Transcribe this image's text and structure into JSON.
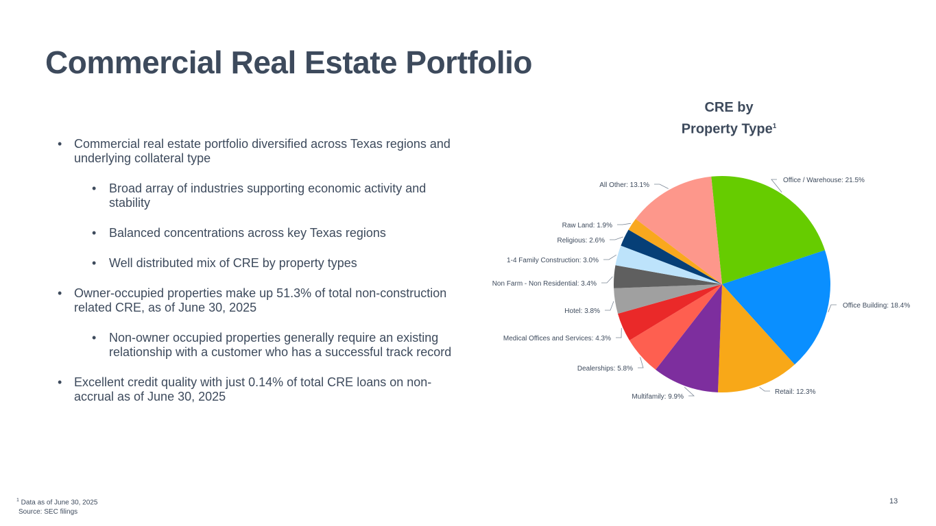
{
  "title": "Commercial Real Estate Portfolio",
  "bullets": {
    "b1": "Commercial real estate portfolio diversified across Texas regions and underlying collateral type",
    "b1a": "Broad array of industries supporting economic activity and stability",
    "b1b": "Balanced concentrations across key Texas regions",
    "b1c": "Well distributed mix of CRE by property types",
    "b2": "Owner-occupied properties make up 51.3% of total non-construction related CRE, as of June 30, 2025",
    "b2a": "Non-owner occupied properties generally require an existing relationship with a customer who has a successful track record",
    "b3": "Excellent credit quality with just  0.14% of total CRE loans on non-accrual as of June 30, 2025"
  },
  "bullet_glyph": "•",
  "chart_title": {
    "line1": "CRE by",
    "line2": "Property Type",
    "footnote_mark": "1"
  },
  "chart_data": {
    "type": "pie",
    "title": "CRE by Property Type",
    "slices": [
      {
        "label": "Office / Warehouse: 21.5%",
        "value": 21.5,
        "color": "#66cc00"
      },
      {
        "label": "Office Building: 18.4%",
        "value": 18.4,
        "color": "#0a8fff"
      },
      {
        "label": "Retail: 12.3%",
        "value": 12.3,
        "color": "#f8a818"
      },
      {
        "label": "Multifamily: 9.9%",
        "value": 9.9,
        "color": "#7d2e9e"
      },
      {
        "label": "Dealerships: 5.8%",
        "value": 5.8,
        "color": "#fe5f50"
      },
      {
        "label": "Medical Offices and Services: 4.3%",
        "value": 4.3,
        "color": "#ea2929"
      },
      {
        "label": "Hotel: 3.8%",
        "value": 3.8,
        "color": "#a0a0a0"
      },
      {
        "label": "Non Farm - Non Residential: 3.4%",
        "value": 3.4,
        "color": "#5f5f5f"
      },
      {
        "label": "1-4 Family Construction: 3.0%",
        "value": 3.0,
        "color": "#bde3fb"
      },
      {
        "label": "Religious: 2.6%",
        "value": 2.6,
        "color": "#063f77"
      },
      {
        "label": "Raw Land: 1.9%",
        "value": 1.9,
        "color": "#f9a81e"
      },
      {
        "label": "All Other: 13.1%",
        "value": 13.1,
        "color": "#fd978b"
      }
    ]
  },
  "footnote": {
    "mark": "1",
    "text": " Data as of June 30, 2025",
    "source": "Source: SEC filings"
  },
  "page_number": "13"
}
